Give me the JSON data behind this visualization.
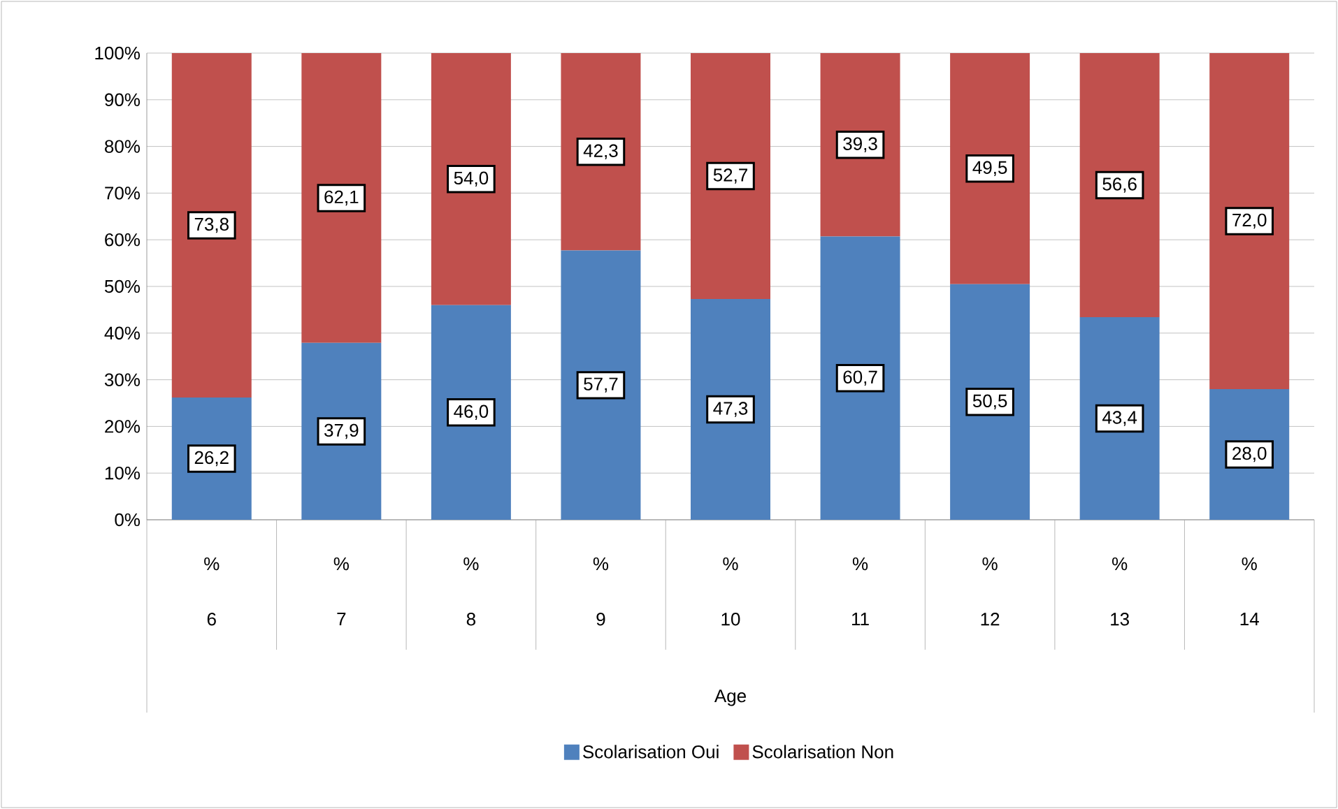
{
  "chart_data": {
    "type": "bar",
    "stacked": true,
    "xlabel": "Age",
    "categories": [
      "6",
      "7",
      "8",
      "9",
      "10",
      "11",
      "12",
      "13",
      "14"
    ],
    "series": [
      {
        "name": "Scolarisation Oui",
        "color": "#4f81bd",
        "values": [
          26.2,
          37.9,
          46.0,
          57.7,
          47.3,
          60.7,
          50.5,
          43.4,
          28.0
        ],
        "value_labels": [
          "26,2",
          "37,9",
          "46,0",
          "57,7",
          "47,3",
          "60,7",
          "50,5",
          "43,4",
          "28,0"
        ]
      },
      {
        "name": "Scolarisation Non",
        "color": "#c0504d",
        "values": [
          73.8,
          62.1,
          54.0,
          42.3,
          52.7,
          39.3,
          49.5,
          56.6,
          72.0
        ],
        "value_labels": [
          "73,8",
          "62,1",
          "54,0",
          "42,3",
          "52,7",
          "39,3",
          "49,5",
          "56,6",
          "72,0"
        ]
      }
    ],
    "ylim": [
      0,
      100
    ],
    "yticks": [
      {
        "value": 0,
        "label": "0%"
      },
      {
        "value": 10,
        "label": "10%"
      },
      {
        "value": 20,
        "label": "20%"
      },
      {
        "value": 30,
        "label": "30%"
      },
      {
        "value": 40,
        "label": "40%"
      },
      {
        "value": 50,
        "label": "50%"
      },
      {
        "value": 60,
        "label": "60%"
      },
      {
        "value": 70,
        "label": "70%"
      },
      {
        "value": 80,
        "label": "80%"
      },
      {
        "value": 90,
        "label": "90%"
      },
      {
        "value": 100,
        "label": "100%"
      }
    ],
    "annotations": [
      "%",
      "%",
      "%",
      "%",
      "%",
      "%",
      "%",
      "%",
      "%"
    ],
    "grid": "y",
    "legend": "bottom"
  }
}
